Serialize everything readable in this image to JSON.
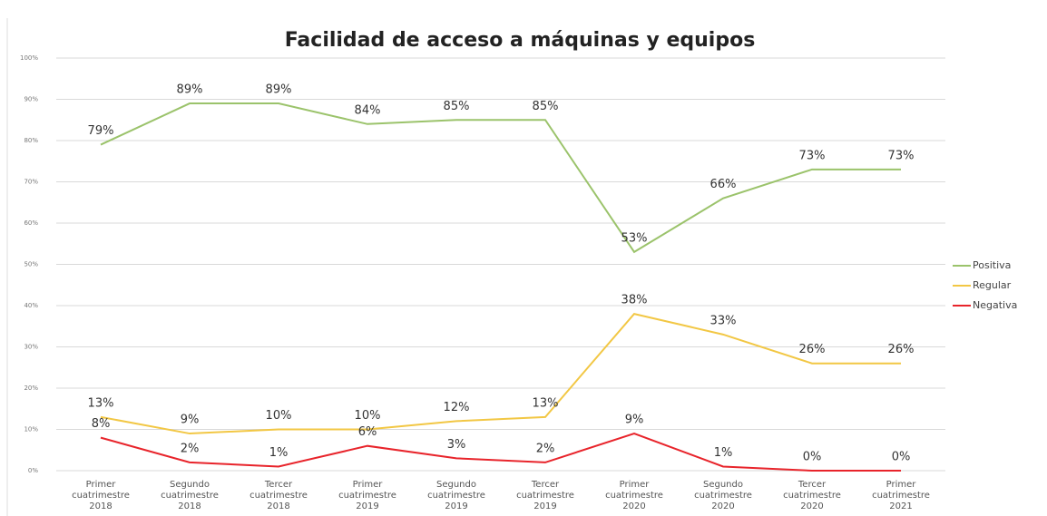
{
  "chart_data": {
    "type": "line",
    "title": "Facilidad de acceso a máquinas y equipos",
    "categories": [
      "Primer cuatrimestre 2018",
      "Segundo cuatrimestre 2018",
      "Tercer cuatrimestre 2018",
      "Primer cuatrimestre 2019",
      "Segundo cuatrimestre 2019",
      "Tercer cuatrimestre 2019",
      "Primer cuatrimestre 2020",
      "Segundo cuatrimestre 2020",
      "Tercer cuatrimestre 2020",
      "Primer cuatrimestre 2021"
    ],
    "series": [
      {
        "name": "Positiva",
        "color": "#9bc36b",
        "values": [
          79,
          89,
          89,
          84,
          85,
          85,
          53,
          66,
          73,
          73
        ],
        "value_labels": [
          "79%",
          "89%",
          "89%",
          "84%",
          "85%",
          "85%",
          "53%",
          "66%",
          "73%",
          "73%"
        ]
      },
      {
        "name": "Regular",
        "color": "#f2c744",
        "values": [
          13,
          9,
          10,
          10,
          12,
          13,
          38,
          33,
          26,
          26
        ],
        "value_labels": [
          "13%",
          "9%",
          "10%",
          "10%",
          "12%",
          "13%",
          "38%",
          "33%",
          "26%",
          "26%"
        ]
      },
      {
        "name": "Negativa",
        "color": "#e8242b",
        "values": [
          8,
          2,
          1,
          6,
          3,
          2,
          9,
          1,
          0,
          0
        ],
        "value_labels": [
          "8%",
          "2%",
          "1%",
          "6%",
          "3%",
          "2%",
          "9%",
          "1%",
          "0%",
          "0%"
        ]
      }
    ],
    "ylim": [
      0,
      100
    ],
    "yticks": [
      {
        "value": 0,
        "label": "0%"
      },
      {
        "value": 10,
        "label": "10%"
      },
      {
        "value": 20,
        "label": "20%"
      },
      {
        "value": 30,
        "label": "30%"
      },
      {
        "value": 40,
        "label": "40%"
      },
      {
        "value": 50,
        "label": "50%"
      },
      {
        "value": 60,
        "label": "60%"
      },
      {
        "value": 70,
        "label": "70%"
      },
      {
        "value": 80,
        "label": "80%"
      },
      {
        "value": 90,
        "label": "90%"
      },
      {
        "value": 100,
        "label": "100%"
      }
    ],
    "grid": true,
    "legend": "right"
  }
}
